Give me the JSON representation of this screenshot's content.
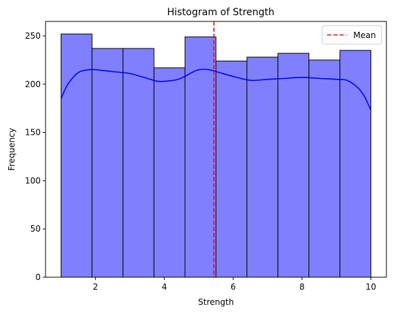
{
  "chart_data": {
    "type": "bar",
    "title": "Histogram of Strength",
    "xlabel": "Strength",
    "ylabel": "Frequency",
    "xlim": [
      0.55,
      10.45
    ],
    "ylim": [
      0,
      265
    ],
    "x_ticks": [
      2,
      4,
      6,
      8,
      10
    ],
    "y_ticks": [
      0,
      50,
      100,
      150,
      200,
      250
    ],
    "bin_edges": [
      1.0,
      1.9,
      2.8,
      3.7,
      4.6,
      5.5,
      6.4,
      7.3,
      8.2,
      9.1,
      10.0
    ],
    "values": [
      252,
      237,
      237,
      217,
      249,
      224,
      228,
      232,
      225,
      235
    ],
    "bar_color": "#8080ff",
    "bar_edge_color": "#000000",
    "kde": {
      "color": "#0000ff",
      "x": [
        1.0,
        1.2,
        1.5,
        1.8,
        2.0,
        2.5,
        3.0,
        3.5,
        3.8,
        4.0,
        4.4,
        4.8,
        5.0,
        5.3,
        5.6,
        6.0,
        6.5,
        7.0,
        7.5,
        8.0,
        8.5,
        9.0,
        9.3,
        9.6,
        9.8,
        10.0
      ],
      "y": [
        185,
        200,
        212,
        215,
        215,
        213,
        211,
        206,
        203,
        203,
        205,
        212,
        215,
        215,
        212,
        208,
        204,
        205,
        206,
        207,
        206,
        205,
        204,
        197,
        188,
        173
      ]
    },
    "mean": {
      "value": 5.44,
      "color": "#ff0000"
    },
    "legend": {
      "position": "top-right",
      "entries": [
        "Mean"
      ]
    },
    "grid": false
  }
}
